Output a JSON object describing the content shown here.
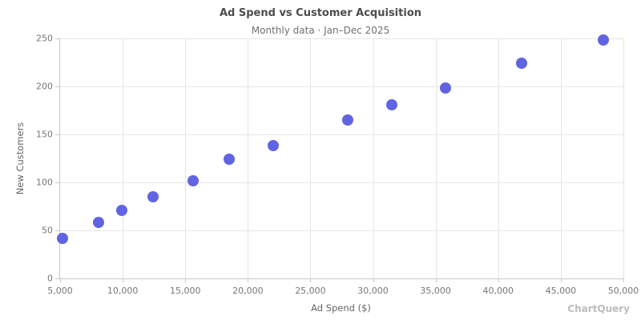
{
  "watermark": "ChartQuery",
  "chart_data": {
    "type": "scatter",
    "title": "Ad Spend vs Customer Acquisition",
    "subtitle": "Monthly data · Jan–Dec 2025",
    "xlabel": "Ad Spend ($)",
    "ylabel": "New Customers",
    "xlim": [
      5000,
      50000
    ],
    "ylim": [
      0,
      250
    ],
    "x_ticks": [
      5000,
      10000,
      15000,
      20000,
      25000,
      30000,
      35000,
      40000,
      45000,
      50000
    ],
    "x_tick_labels": [
      "5,000",
      "10,000",
      "15,000",
      "20,000",
      "25,000",
      "30,000",
      "35,000",
      "40,000",
      "45,000",
      "50,000"
    ],
    "y_ticks": [
      0,
      50,
      100,
      150,
      200,
      250
    ],
    "y_tick_labels": [
      "0",
      "50",
      "100",
      "150",
      "200",
      "250"
    ],
    "grid": true,
    "legend": false,
    "point_color": "#6164e2",
    "points": [
      {
        "x": 5200,
        "y": 42
      },
      {
        "x": 8100,
        "y": 58
      },
      {
        "x": 9900,
        "y": 71
      },
      {
        "x": 12400,
        "y": 85
      },
      {
        "x": 15600,
        "y": 102
      },
      {
        "x": 18500,
        "y": 124
      },
      {
        "x": 22000,
        "y": 138
      },
      {
        "x": 28000,
        "y": 165
      },
      {
        "x": 31500,
        "y": 181
      },
      {
        "x": 35800,
        "y": 198
      },
      {
        "x": 41900,
        "y": 224
      },
      {
        "x": 48400,
        "y": 248
      }
    ]
  }
}
